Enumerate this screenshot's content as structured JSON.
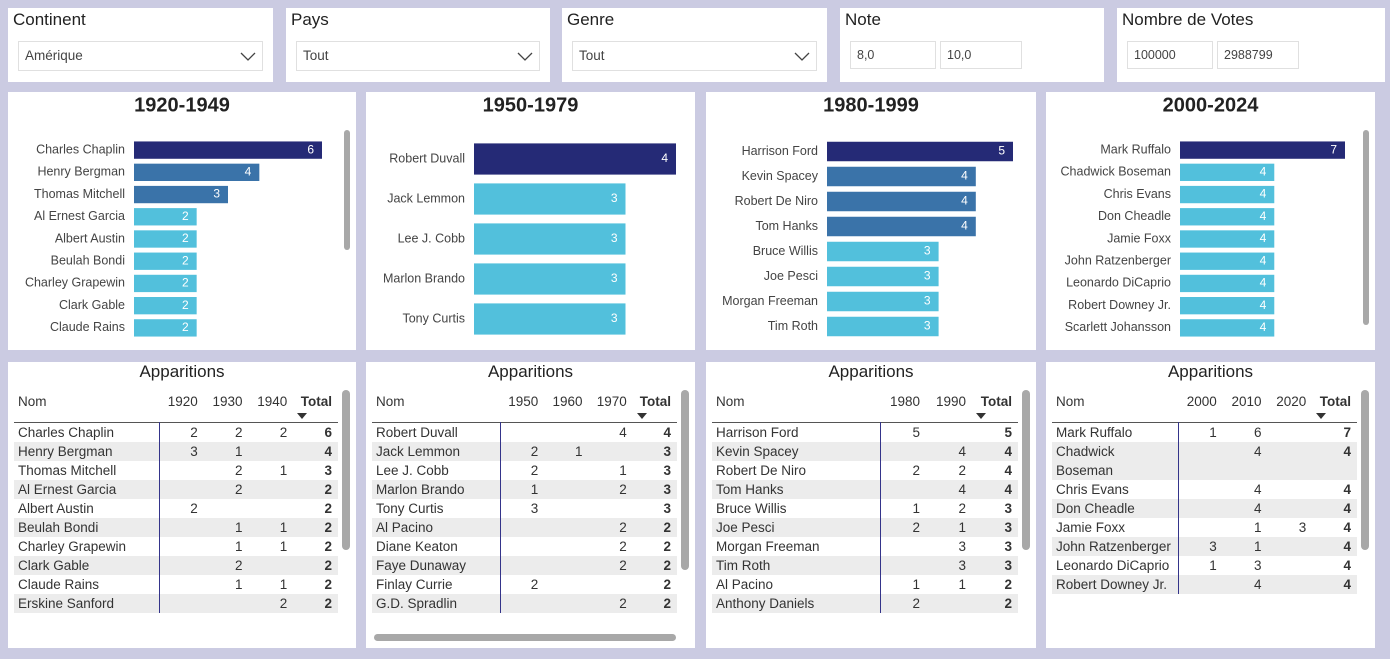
{
  "filters": [
    {
      "label": "Continent",
      "selected": "Amérique"
    },
    {
      "label": "Pays",
      "selected": "Tout"
    },
    {
      "label": "Genre",
      "selected": "Tout"
    },
    {
      "label": "Note",
      "range": [
        "8,0",
        "10,0"
      ]
    },
    {
      "label": "Nombre de Votes",
      "range": [
        100000,
        2988799
      ]
    }
  ],
  "chart_data": [
    {
      "type": "bar",
      "title": "1920-1949",
      "categories": [
        "Charles Chaplin",
        "Henry Bergman",
        "Thomas Mitchell",
        "Al Ernest Garcia",
        "Albert Austin",
        "Beulah Bondi",
        "Charley Grapewin",
        "Clark Gable",
        "Claude Rains"
      ],
      "values": [
        6,
        4,
        3,
        2,
        2,
        2,
        2,
        2,
        2
      ],
      "colors": [
        "#252a76",
        "#3a73a9",
        "#3a73a9",
        "#52c0dc",
        "#52c0dc",
        "#52c0dc",
        "#52c0dc",
        "#52c0dc",
        "#52c0dc"
      ]
    },
    {
      "type": "bar",
      "title": "1950-1979",
      "categories": [
        "Robert Duvall",
        "Jack Lemmon",
        "Lee J. Cobb",
        "Marlon Brando",
        "Tony Curtis"
      ],
      "values": [
        4,
        3,
        3,
        3,
        3
      ],
      "colors": [
        "#252a76",
        "#52c0dc",
        "#52c0dc",
        "#52c0dc",
        "#52c0dc"
      ]
    },
    {
      "type": "bar",
      "title": "1980-1999",
      "categories": [
        "Harrison Ford",
        "Kevin Spacey",
        "Robert De Niro",
        "Tom Hanks",
        "Bruce Willis",
        "Joe Pesci",
        "Morgan Freeman",
        "Tim Roth"
      ],
      "values": [
        5,
        4,
        4,
        4,
        3,
        3,
        3,
        3
      ],
      "colors": [
        "#252a76",
        "#3a73a9",
        "#3a73a9",
        "#3a73a9",
        "#52c0dc",
        "#52c0dc",
        "#52c0dc",
        "#52c0dc"
      ]
    },
    {
      "type": "bar",
      "title": "2000-2024",
      "categories": [
        "Mark Ruffalo",
        "Chadwick Boseman",
        "Chris Evans",
        "Don Cheadle",
        "Jamie Foxx",
        "John Ratzenberger",
        "Leonardo DiCaprio",
        "Robert Downey Jr.",
        "Scarlett Johansson"
      ],
      "values": [
        7,
        4,
        4,
        4,
        4,
        4,
        4,
        4,
        4
      ],
      "colors": [
        "#252a76",
        "#52c0dc",
        "#52c0dc",
        "#52c0dc",
        "#52c0dc",
        "#52c0dc",
        "#52c0dc",
        "#52c0dc",
        "#52c0dc"
      ]
    }
  ],
  "tables": [
    {
      "title": "Apparitions",
      "columns": [
        "Nom",
        "1920",
        "1930",
        "1940",
        "Total"
      ],
      "rows": [
        [
          "Charles Chaplin",
          2,
          2,
          2,
          6
        ],
        [
          "Henry Bergman",
          3,
          1,
          null,
          4
        ],
        [
          "Thomas Mitchell",
          null,
          2,
          1,
          3
        ],
        [
          "Al Ernest Garcia",
          null,
          2,
          null,
          2
        ],
        [
          "Albert Austin",
          2,
          null,
          null,
          2
        ],
        [
          "Beulah Bondi",
          null,
          1,
          1,
          2
        ],
        [
          "Charley Grapewin",
          null,
          1,
          1,
          2
        ],
        [
          "Clark Gable",
          null,
          2,
          null,
          2
        ],
        [
          "Claude Rains",
          null,
          1,
          1,
          2
        ],
        [
          "Erskine Sanford",
          null,
          null,
          2,
          2
        ]
      ]
    },
    {
      "title": "Apparitions",
      "columns": [
        "Nom",
        "1950",
        "1960",
        "1970",
        "Total"
      ],
      "rows": [
        [
          "Robert Duvall",
          null,
          null,
          4,
          4
        ],
        [
          "Jack Lemmon",
          2,
          1,
          null,
          3
        ],
        [
          "Lee J. Cobb",
          2,
          null,
          1,
          3
        ],
        [
          "Marlon Brando",
          1,
          null,
          2,
          3
        ],
        [
          "Tony Curtis",
          3,
          null,
          null,
          3
        ],
        [
          "Al Pacino",
          null,
          null,
          2,
          2
        ],
        [
          "Diane Keaton",
          null,
          null,
          2,
          2
        ],
        [
          "Faye Dunaway",
          null,
          null,
          2,
          2
        ],
        [
          "Finlay Currie",
          2,
          null,
          null,
          2
        ],
        [
          "G.D. Spradlin",
          null,
          null,
          2,
          2
        ]
      ]
    },
    {
      "title": "Apparitions",
      "columns": [
        "Nom",
        "1980",
        "1990",
        "Total"
      ],
      "rows": [
        [
          "Harrison Ford",
          5,
          null,
          5
        ],
        [
          "Kevin Spacey",
          null,
          4,
          4
        ],
        [
          "Robert De Niro",
          2,
          2,
          4
        ],
        [
          "Tom Hanks",
          null,
          4,
          4
        ],
        [
          "Bruce Willis",
          1,
          2,
          3
        ],
        [
          "Joe Pesci",
          2,
          1,
          3
        ],
        [
          "Morgan Freeman",
          null,
          3,
          3
        ],
        [
          "Tim Roth",
          null,
          3,
          3
        ],
        [
          "Al Pacino",
          1,
          1,
          2
        ],
        [
          "Anthony Daniels",
          2,
          null,
          2
        ]
      ]
    },
    {
      "title": "Apparitions",
      "columns": [
        "Nom",
        "2000",
        "2010",
        "2020",
        "Total"
      ],
      "rows": [
        [
          "Mark Ruffalo",
          1,
          6,
          null,
          7
        ],
        [
          "Chadwick Boseman",
          null,
          4,
          null,
          4
        ],
        [
          "Chris Evans",
          null,
          4,
          null,
          4
        ],
        [
          "Don Cheadle",
          null,
          4,
          null,
          4
        ],
        [
          "Jamie Foxx",
          null,
          1,
          3,
          4
        ],
        [
          "John Ratzenberger",
          3,
          1,
          null,
          4
        ],
        [
          "Leonardo DiCaprio",
          1,
          3,
          null,
          4
        ],
        [
          "Robert Downey Jr.",
          null,
          4,
          null,
          4
        ]
      ]
    }
  ]
}
